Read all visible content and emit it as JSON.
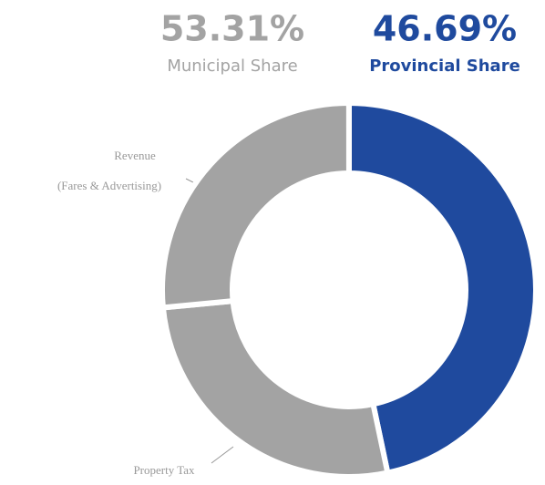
{
  "chart_data": {
    "type": "pie",
    "donut": true,
    "shares": [
      {
        "name": "Municipal Share",
        "value": 53.31,
        "value_label": "53.31%",
        "color": "#a3a3a3"
      },
      {
        "name": "Provincial Share",
        "value": 46.69,
        "value_label": "46.69%",
        "color": "#1f4a9e"
      }
    ],
    "segments": [
      {
        "name": "Property Tax",
        "value": 26.8
      },
      {
        "name": "Revenue",
        "note": "(Fares & Advertising)",
        "value": 26.5
      }
    ]
  }
}
